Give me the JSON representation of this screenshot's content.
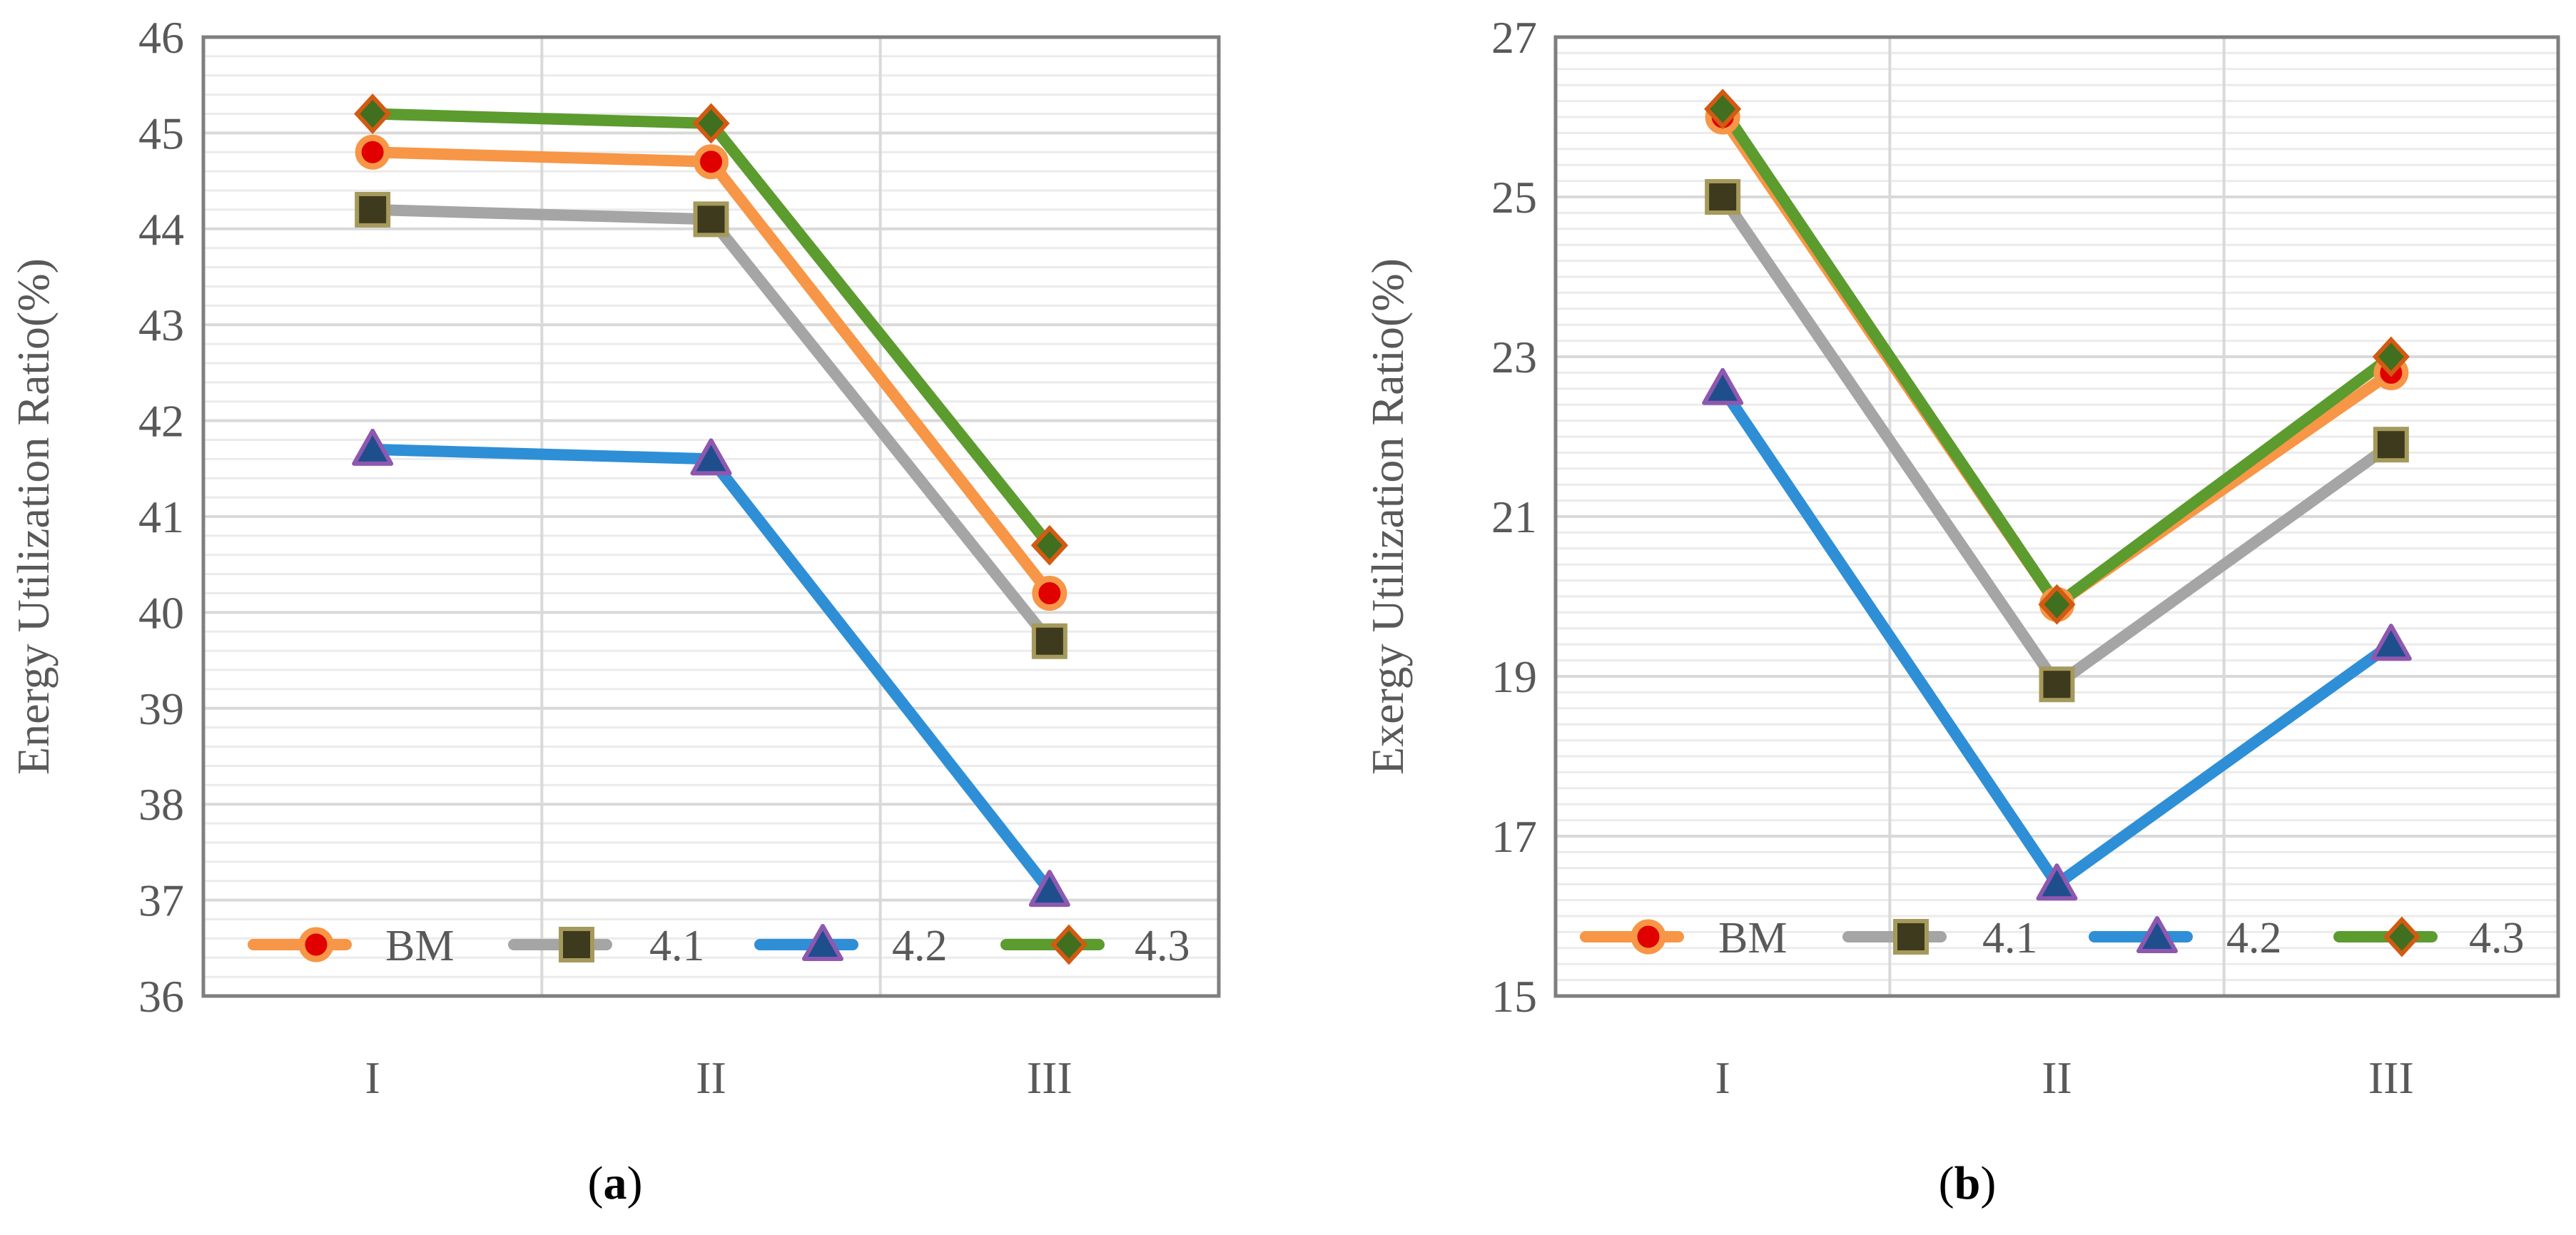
{
  "chart_data": [
    {
      "type": "line",
      "panel_label": "a",
      "categories": [
        "I",
        "II",
        "III"
      ],
      "ylabel": "Energy Utilization Ratio(%)",
      "ylim": [
        36,
        46
      ],
      "yticks": [
        36,
        37,
        38,
        39,
        40,
        41,
        42,
        43,
        44,
        45,
        46
      ],
      "grid": true,
      "legend_position": "bottom",
      "series": [
        {
          "name": "BM",
          "values": [
            44.8,
            44.7,
            40.2
          ],
          "color": "#F79646",
          "marker": "circle",
          "marker_fill": "#E00000",
          "marker_stroke": "#F79646"
        },
        {
          "name": "4.1",
          "values": [
            44.2,
            44.1,
            39.7
          ],
          "color": "#A5A5A5",
          "marker": "square",
          "marker_fill": "#3D3A1E",
          "marker_stroke": "#A59A5C"
        },
        {
          "name": "4.2",
          "values": [
            41.7,
            41.6,
            37.1
          ],
          "color": "#2E8FD6",
          "marker": "triangle",
          "marker_fill": "#1F4E8C",
          "marker_stroke": "#8E58B0"
        },
        {
          "name": "4.3",
          "values": [
            45.2,
            45.1,
            40.7
          ],
          "color": "#5C9B2E",
          "marker": "diamond",
          "marker_fill": "#3F6F1F",
          "marker_stroke": "#D25A12"
        }
      ]
    },
    {
      "type": "line",
      "panel_label": "b",
      "categories": [
        "I",
        "II",
        "III"
      ],
      "ylabel": "Exergy Utilization Ratio(%)",
      "ylim": [
        15,
        27
      ],
      "yticks": [
        15,
        17,
        19,
        21,
        23,
        25,
        27
      ],
      "grid": true,
      "legend_position": "bottom",
      "series": [
        {
          "name": "BM",
          "values": [
            26.0,
            19.9,
            22.8
          ],
          "color": "#F79646",
          "marker": "circle",
          "marker_fill": "#E00000",
          "marker_stroke": "#F79646"
        },
        {
          "name": "4.1",
          "values": [
            25.0,
            18.9,
            21.9
          ],
          "color": "#A5A5A5",
          "marker": "square",
          "marker_fill": "#3D3A1E",
          "marker_stroke": "#A59A5C"
        },
        {
          "name": "4.2",
          "values": [
            22.6,
            16.4,
            19.4
          ],
          "color": "#2E8FD6",
          "marker": "triangle",
          "marker_fill": "#1F4E8C",
          "marker_stroke": "#8E58B0"
        },
        {
          "name": "4.3",
          "values": [
            26.1,
            19.9,
            23.0
          ],
          "color": "#5C9B2E",
          "marker": "diamond",
          "marker_fill": "#3F6F1F",
          "marker_stroke": "#D25A12"
        }
      ]
    }
  ]
}
